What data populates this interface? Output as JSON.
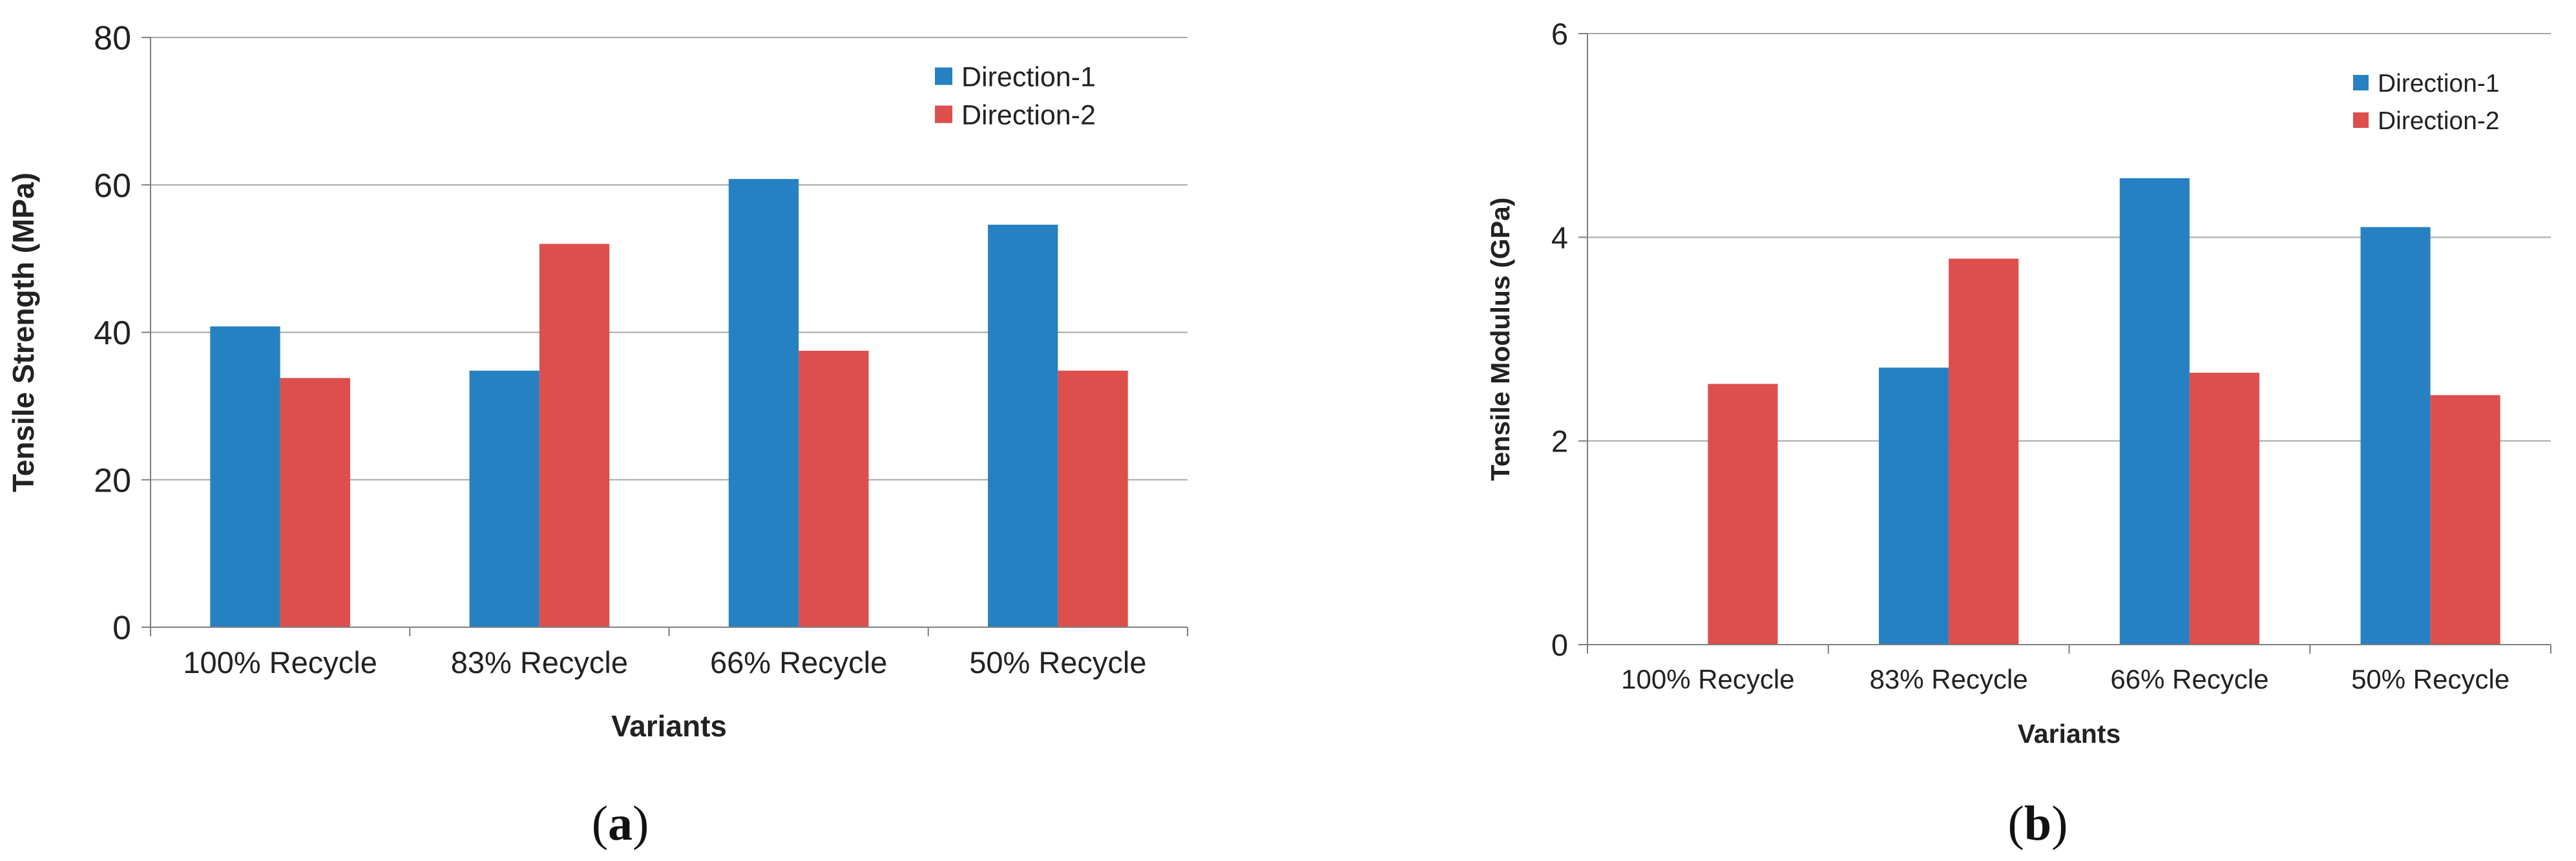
{
  "colors": {
    "series1": "#2681c2",
    "series2": "#dd4f4c",
    "grid": "#a6a6a6",
    "axis": "#7f7f7f"
  },
  "chart_data": [
    {
      "type": "bar",
      "panel_label": "(a)",
      "panel_letter": "a",
      "title": "",
      "xlabel": "Variants",
      "ylabel": "Tensile Strength (MPa)",
      "ylim": [
        0,
        80
      ],
      "yticks": [
        "0",
        "20",
        "40",
        "60",
        "80"
      ],
      "grid": true,
      "legend_position": "top-right",
      "categories": [
        "100% Recycle",
        "83% Recycle",
        "66% Recycle",
        "50% Recycle"
      ],
      "series": [
        {
          "name": "Direction-1",
          "values": [
            40.8,
            34.8,
            60.8,
            54.6
          ]
        },
        {
          "name": "Direction-2",
          "values": [
            33.8,
            52.0,
            37.5,
            34.8
          ]
        }
      ]
    },
    {
      "type": "bar",
      "panel_label": "(b)",
      "panel_letter": "b",
      "title": "",
      "xlabel": "Variants",
      "ylabel": "Tensile Modulus (GPa)",
      "ylim": [
        0,
        6
      ],
      "yticks": [
        "0",
        "2",
        "4",
        "6"
      ],
      "grid": true,
      "legend_position": "top-right",
      "categories": [
        "100% Recycle",
        "83% Recycle",
        "66% Recycle",
        "50% Recycle"
      ],
      "series": [
        {
          "name": "Direction-1",
          "values": [
            0,
            2.72,
            4.58,
            4.1
          ]
        },
        {
          "name": "Direction-2",
          "values": [
            2.56,
            3.79,
            2.67,
            2.45
          ]
        }
      ]
    }
  ]
}
